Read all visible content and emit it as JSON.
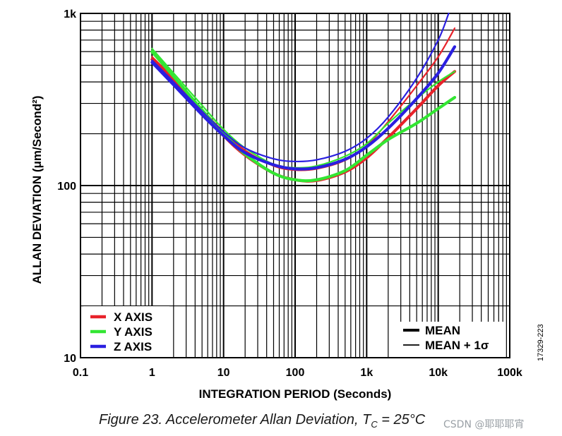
{
  "chart_data": {
    "type": "line",
    "scale": "log-log",
    "title": "",
    "xlabel": "INTEGRATION PERIOD (Seconds)",
    "ylabel": "ALLAN DEVIATION (μm/Second²)",
    "xlim": [
      0.1,
      100000
    ],
    "ylim": [
      10,
      1000
    ],
    "x_ticks": [
      {
        "value": 0.1,
        "label": "0.1"
      },
      {
        "value": 1,
        "label": "1"
      },
      {
        "value": 10,
        "label": "10"
      },
      {
        "value": 100,
        "label": "100"
      },
      {
        "value": 1000,
        "label": "1k"
      },
      {
        "value": 10000,
        "label": "10k"
      },
      {
        "value": 100000,
        "label": "100k"
      }
    ],
    "y_ticks": [
      {
        "value": 10,
        "label": "10"
      },
      {
        "value": 100,
        "label": "100"
      },
      {
        "value": 1000,
        "label": "1k"
      }
    ],
    "grid": true,
    "legend_axes": [
      {
        "name": "X AXIS",
        "color": "#e8222a"
      },
      {
        "name": "Y AXIS",
        "color": "#33e633"
      },
      {
        "name": "Z AXIS",
        "color": "#2a1fe0"
      }
    ],
    "legend_styles": [
      {
        "name": "MEAN",
        "style": "thick"
      },
      {
        "name": "MEAN + 1σ",
        "style": "thin"
      }
    ],
    "series": [
      {
        "name": "X AXIS MEAN",
        "color": "#e8222a",
        "style": "thick",
        "x": [
          1,
          2,
          5,
          10,
          20,
          50,
          100,
          200,
          500,
          1000,
          2000,
          5000,
          10000,
          17000
        ],
        "y": [
          540,
          405,
          265,
          195,
          150,
          118,
          108,
          107,
          120,
          145,
          190,
          280,
          380,
          460
        ]
      },
      {
        "name": "X AXIS MEAN + 1σ",
        "color": "#e8222a",
        "style": "thin",
        "x": [
          1,
          2,
          5,
          10,
          20,
          50,
          100,
          200,
          500,
          1000,
          2000,
          5000,
          10000,
          17000
        ],
        "y": [
          560,
          420,
          278,
          205,
          160,
          130,
          123,
          125,
          140,
          170,
          235,
          380,
          560,
          820
        ]
      },
      {
        "name": "Y AXIS MEAN",
        "color": "#33e633",
        "style": "thick",
        "x": [
          1,
          2,
          5,
          10,
          20,
          50,
          100,
          200,
          500,
          1000,
          2000,
          5000,
          10000,
          17000
        ],
        "y": [
          600,
          430,
          275,
          200,
          152,
          118,
          108,
          108,
          122,
          150,
          185,
          230,
          280,
          325
        ]
      },
      {
        "name": "Y AXIS MEAN + 1σ",
        "color": "#33e633",
        "style": "thin",
        "x": [
          1,
          2,
          5,
          10,
          20,
          50,
          100,
          200,
          500,
          1000,
          2000,
          5000,
          10000,
          17000
        ],
        "y": [
          625,
          450,
          292,
          212,
          165,
          133,
          127,
          130,
          148,
          175,
          230,
          320,
          400,
          460
        ]
      },
      {
        "name": "Z AXIS MEAN",
        "color": "#2a1fe0",
        "style": "thick",
        "x": [
          1,
          2,
          5,
          10,
          20,
          50,
          100,
          200,
          500,
          1000,
          2000,
          5000,
          10000,
          17000
        ],
        "y": [
          520,
          385,
          258,
          195,
          155,
          132,
          125,
          127,
          142,
          168,
          215,
          320,
          450,
          640
        ]
      },
      {
        "name": "Z AXIS MEAN + 1σ",
        "color": "#2a1fe0",
        "style": "thin",
        "x": [
          1,
          2,
          5,
          10,
          20,
          50,
          100,
          200,
          500,
          1000,
          2000,
          5000,
          10000,
          14000
        ],
        "y": [
          535,
          400,
          270,
          205,
          165,
          143,
          138,
          141,
          158,
          188,
          250,
          420,
          700,
          1000
        ]
      }
    ]
  },
  "caption": {
    "prefix": "Figure 23. Accelerometer Allan Deviation, T",
    "subscript": "C",
    "suffix": " = 25°C"
  },
  "figure_id": "17329-223",
  "watermark": "CSDN @耶耶耶宵"
}
